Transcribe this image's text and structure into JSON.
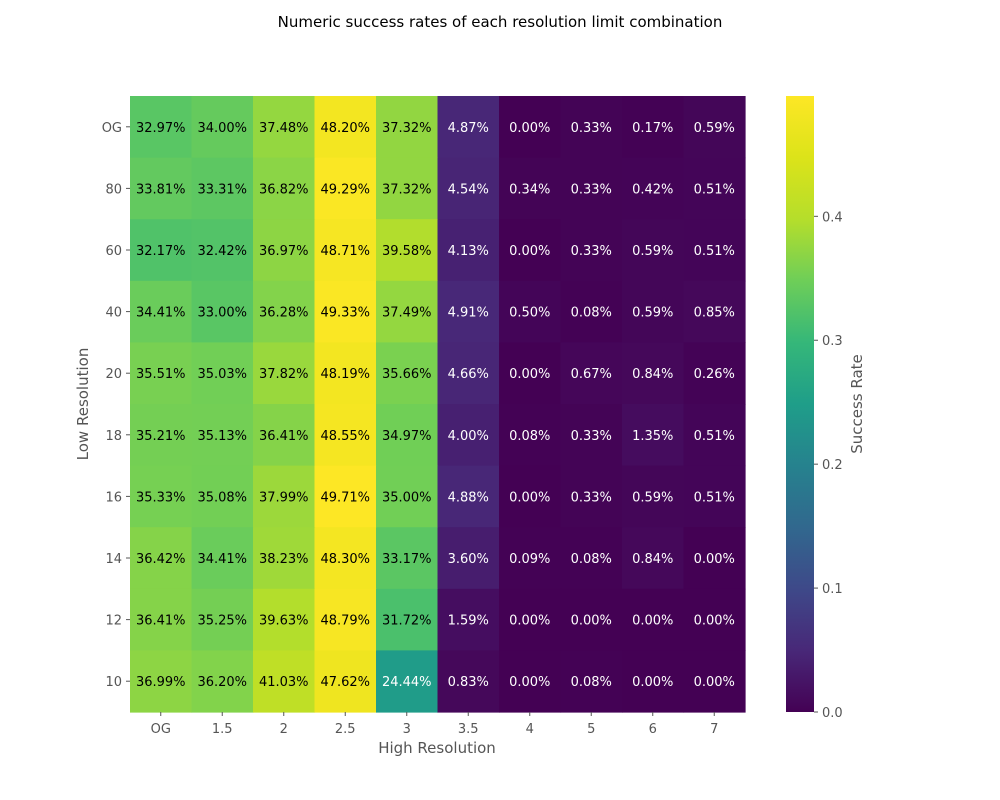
{
  "chart_data": {
    "type": "heatmap",
    "title": "Numeric success rates of each resolution limit combination",
    "xlabel": "High Resolution",
    "ylabel": "Low Resolution",
    "x_categories": [
      "OG",
      "1.5",
      "2",
      "2.5",
      "3",
      "3.5",
      "4",
      "5",
      "6",
      "7"
    ],
    "y_categories": [
      "OG",
      "80",
      "60",
      "40",
      "20",
      "18",
      "16",
      "14",
      "12",
      "10"
    ],
    "values": [
      [
        0.3297,
        0.34,
        0.3748,
        0.482,
        0.3732,
        0.0487,
        0.0,
        0.0033,
        0.0017,
        0.0059
      ],
      [
        0.3381,
        0.3331,
        0.3682,
        0.4929,
        0.3732,
        0.0454,
        0.0034,
        0.0033,
        0.0042,
        0.0051
      ],
      [
        0.3217,
        0.3242,
        0.3697,
        0.4871,
        0.3958,
        0.0413,
        0.0,
        0.0033,
        0.0059,
        0.0051
      ],
      [
        0.3441,
        0.33,
        0.3628,
        0.4933,
        0.3749,
        0.0491,
        0.005,
        0.0008,
        0.0059,
        0.0085
      ],
      [
        0.3551,
        0.3503,
        0.3782,
        0.4819,
        0.3566,
        0.0466,
        0.0,
        0.0067,
        0.0084,
        0.0026
      ],
      [
        0.3521,
        0.3513,
        0.3641,
        0.4855,
        0.3497,
        0.04,
        0.0008,
        0.0033,
        0.0135,
        0.0051
      ],
      [
        0.3533,
        0.3508,
        0.3799,
        0.4971,
        0.35,
        0.0488,
        0.0,
        0.0033,
        0.0059,
        0.0051
      ],
      [
        0.3642,
        0.3441,
        0.3823,
        0.483,
        0.3317,
        0.036,
        0.0009,
        0.0008,
        0.0084,
        0.0
      ],
      [
        0.3641,
        0.3525,
        0.3963,
        0.4879,
        0.3172,
        0.0159,
        0.0,
        0.0,
        0.0,
        0.0
      ],
      [
        0.3699,
        0.362,
        0.4103,
        0.4762,
        0.2444,
        0.0083,
        0.0,
        0.0008,
        0.0,
        0.0
      ]
    ],
    "cell_labels": [
      [
        "32.97%",
        "34.00%",
        "37.48%",
        "48.20%",
        "37.32%",
        "4.87%",
        "0.00%",
        "0.33%",
        "0.17%",
        "0.59%"
      ],
      [
        "33.81%",
        "33.31%",
        "36.82%",
        "49.29%",
        "37.32%",
        "4.54%",
        "0.34%",
        "0.33%",
        "0.42%",
        "0.51%"
      ],
      [
        "32.17%",
        "32.42%",
        "36.97%",
        "48.71%",
        "39.58%",
        "4.13%",
        "0.00%",
        "0.33%",
        "0.59%",
        "0.51%"
      ],
      [
        "34.41%",
        "33.00%",
        "36.28%",
        "49.33%",
        "37.49%",
        "4.91%",
        "0.50%",
        "0.08%",
        "0.59%",
        "0.85%"
      ],
      [
        "35.51%",
        "35.03%",
        "37.82%",
        "48.19%",
        "35.66%",
        "4.66%",
        "0.00%",
        "0.67%",
        "0.84%",
        "0.26%"
      ],
      [
        "35.21%",
        "35.13%",
        "36.41%",
        "48.55%",
        "34.97%",
        "4.00%",
        "0.08%",
        "0.33%",
        "1.35%",
        "0.51%"
      ],
      [
        "35.33%",
        "35.08%",
        "37.99%",
        "49.71%",
        "35.00%",
        "4.88%",
        "0.00%",
        "0.33%",
        "0.59%",
        "0.51%"
      ],
      [
        "36.42%",
        "34.41%",
        "38.23%",
        "48.30%",
        "33.17%",
        "3.60%",
        "0.09%",
        "0.08%",
        "0.84%",
        "0.00%"
      ],
      [
        "36.41%",
        "35.25%",
        "39.63%",
        "48.79%",
        "31.72%",
        "1.59%",
        "0.00%",
        "0.00%",
        "0.00%",
        "0.00%"
      ],
      [
        "36.99%",
        "36.20%",
        "41.03%",
        "47.62%",
        "24.44%",
        "0.83%",
        "0.00%",
        "0.08%",
        "0.00%",
        "0.00%"
      ]
    ],
    "colormap": "viridis",
    "value_range": [
      0.0,
      0.4971
    ],
    "colorbar": {
      "label": "Success Rate",
      "ticks": [
        0.0,
        0.1,
        0.2,
        0.3,
        0.4
      ],
      "tick_labels": [
        "0.0",
        "0.1",
        "0.2",
        "0.3",
        "0.4"
      ]
    },
    "grid": false
  }
}
